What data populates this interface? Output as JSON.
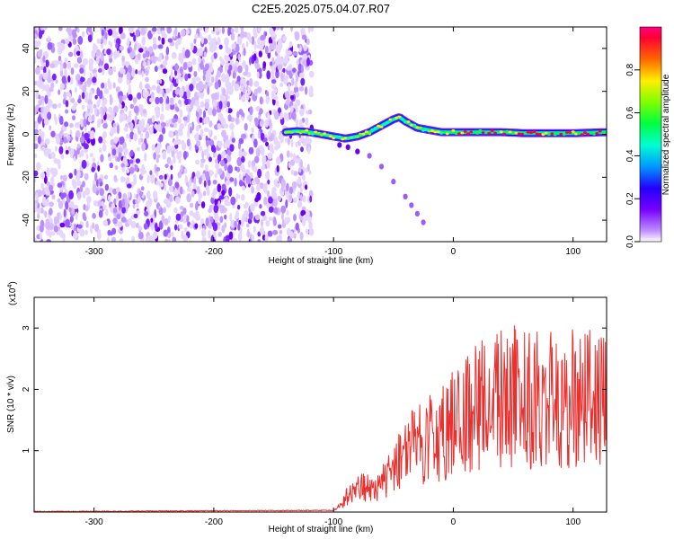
{
  "figure": {
    "title": "C2E5.2025.075.04.07.R07"
  },
  "chart_data": [
    {
      "type": "heatmap",
      "xlabel": "Height of straight line (km)",
      "ylabel": "Frequency (Hz)",
      "xlim": [
        -350,
        128
      ],
      "ylim": [
        -50,
        50
      ],
      "xticks": [
        -300,
        -200,
        -100,
        0,
        100
      ],
      "yticks": [
        -40,
        -20,
        0,
        20,
        40
      ],
      "colorbar": {
        "label": "Normalized spectral amplitude",
        "range": [
          0,
          1
        ],
        "ticks": [
          0.0,
          0.2,
          0.4,
          0.6,
          0.8
        ],
        "tick_labels": [
          "0.0",
          "0.2",
          "0.4",
          "0.6",
          "0.8"
        ]
      },
      "noise_region_x": [
        -350,
        -118
      ],
      "ridge": {
        "x": [
          -140,
          -130,
          -120,
          -110,
          -100,
          -90,
          -80,
          -70,
          -60,
          -50,
          -45,
          -40,
          -30,
          -20,
          -10,
          0,
          20,
          40,
          60,
          80,
          100,
          128
        ],
        "y": [
          1,
          1.5,
          1,
          0,
          -1,
          -2,
          -1,
          1,
          4,
          7,
          8,
          6,
          3,
          2,
          1,
          1,
          1,
          1,
          0.5,
          0.5,
          0.5,
          1
        ]
      },
      "secondary_branch": {
        "x": [
          -95,
          -88,
          -80,
          -70,
          -60,
          -50,
          -40,
          -35,
          -30,
          -25
        ],
        "y": [
          -5,
          -6,
          -8,
          -10,
          -15,
          -22,
          -29,
          -33,
          -37,
          -41
        ]
      }
    },
    {
      "type": "line",
      "xlabel": "Height of straight line (km)",
      "ylabel": "SNR (10 * v/v)",
      "y_multiplier_label": "(x10",
      "y_multiplier_exp": "4",
      "y_multiplier_close": ")",
      "xlim": [
        -350,
        128
      ],
      "ylim": [
        0,
        3.5
      ],
      "xticks": [
        -300,
        -200,
        -100,
        0,
        100
      ],
      "yticks": [
        1,
        2,
        3
      ],
      "color": "#e8302f",
      "series": [
        {
          "x": [
            -350,
            -100,
            -95,
            -90,
            -85,
            -80,
            -75,
            -70,
            -65,
            -60,
            -55,
            -50,
            -45,
            -40,
            -35,
            -30,
            -25,
            -20,
            -15,
            -10,
            -5,
            0,
            5,
            10,
            15,
            20,
            25,
            30,
            35,
            40,
            45,
            50,
            55,
            60,
            65,
            70,
            75,
            80,
            85,
            90,
            95,
            100,
            105,
            110,
            115,
            120,
            125,
            128
          ],
          "y": [
            0.0,
            0.02,
            0.1,
            0.25,
            0.35,
            0.4,
            0.45,
            0.4,
            0.35,
            0.5,
            0.6,
            0.75,
            0.9,
            1.0,
            1.1,
            1.2,
            1.2,
            1.3,
            1.35,
            1.4,
            1.5,
            1.55,
            1.6,
            1.7,
            1.8,
            1.9,
            2.0,
            2.05,
            2.1,
            2.05,
            2.0,
            2.05,
            2.1,
            2.0,
            1.95,
            2.0,
            1.9,
            2.0,
            1.95,
            1.9,
            1.95,
            2.0,
            1.9,
            1.95,
            2.0,
            1.9,
            1.95,
            2.0
          ]
        }
      ]
    }
  ]
}
